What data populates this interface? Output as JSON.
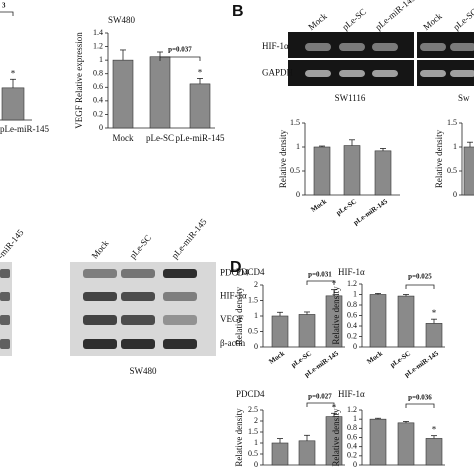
{
  "panels": {
    "b": "B",
    "d": "D"
  },
  "chart_data": [
    {
      "type": "bar",
      "categories": [
        "pLe-miR-145"
      ],
      "values": [
        0.45
      ],
      "errors": [
        0.12
      ],
      "ylim": [
        0,
        1.4
      ],
      "annotation": "3",
      "star": "*"
    },
    {
      "type": "bar",
      "title": "SW480",
      "ylabel": "VEGF Relative expression",
      "categories": [
        "Mock",
        "pLe-SC",
        "pLe-miR-145"
      ],
      "values": [
        1.0,
        1.05,
        0.65
      ],
      "errors": [
        0.15,
        0.07,
        0.08
      ],
      "ylim": [
        0,
        1.4
      ],
      "yticks": [
        0,
        0.2,
        0.4,
        0.6,
        0.8,
        1,
        1.2,
        1.4
      ],
      "annotation": "p=0.037",
      "star": "*"
    },
    {
      "type": "bar",
      "ylabel": "Relative density",
      "categories": [
        "Mock",
        "pLe-SC",
        "pLe-miR-145"
      ],
      "values": [
        1.0,
        1.03,
        0.92
      ],
      "errors": [
        0.02,
        0.12,
        0.05
      ],
      "ylim": [
        0,
        1.5
      ],
      "yticks": [
        0,
        0.5,
        1,
        1.5
      ]
    },
    {
      "type": "bar",
      "ylabel": "Relative density",
      "categories": [
        null
      ],
      "values": [
        1.0
      ],
      "errors": [
        0.1
      ],
      "ylim": [
        0,
        1.5
      ],
      "yticks": [
        0,
        0.5,
        1,
        1.5
      ]
    },
    {
      "type": "bar",
      "title": "PDCD4",
      "ylabel": "Relative density",
      "categories": [
        "Mock",
        "pLe-SC",
        "pLe-miR-145"
      ],
      "values": [
        1.0,
        1.05,
        1.65
      ],
      "errors": [
        0.12,
        0.08,
        0.2
      ],
      "ylim": [
        0,
        2
      ],
      "yticks": [
        0,
        0.5,
        1,
        1.5,
        2
      ],
      "annotation": "p=0.031",
      "star": "*"
    },
    {
      "type": "bar",
      "title": "HIF-1α",
      "ylabel": "Relative density",
      "categories": [
        "Mock",
        "pLe-SC",
        "pLe-miR-145"
      ],
      "values": [
        1.0,
        0.97,
        0.45
      ],
      "errors": [
        0.02,
        0.03,
        0.08
      ],
      "ylim": [
        0,
        1.2
      ],
      "yticks": [
        0,
        0.2,
        0.4,
        0.6,
        0.8,
        1,
        1.2
      ],
      "annotation": "p=0.025",
      "star": "*"
    },
    {
      "type": "bar",
      "title": "PDCD4",
      "ylabel": "Relative density",
      "categories": [
        null,
        null,
        null
      ],
      "values": [
        1.0,
        1.1,
        2.2
      ],
      "errors": [
        0.2,
        0.25,
        0.15
      ],
      "ylim": [
        0,
        2.5
      ],
      "yticks": [
        0,
        0.5,
        1,
        1.5,
        2,
        2.5
      ],
      "annotation": "p=0.027",
      "star": "*"
    },
    {
      "type": "bar",
      "title": "HIF-1α",
      "ylabel": "Relative density",
      "categories": [
        null,
        null,
        null
      ],
      "values": [
        1.0,
        0.92,
        0.58
      ],
      "errors": [
        0.02,
        0.03,
        0.06
      ],
      "ylim": [
        0,
        1.2
      ],
      "yticks": [
        0,
        0.2,
        0.4,
        0.6,
        0.8,
        1,
        1.2
      ],
      "annotation": "p=0.036",
      "star": "*"
    }
  ],
  "blot_b": {
    "rows": [
      "HIF-1α",
      "GAPDH"
    ],
    "lanes": [
      "Mock",
      "pLe-SC",
      "pLe-miR-145"
    ],
    "lanes_right": [
      "Mock",
      "pLe-SC"
    ],
    "cell_line": "SW1116",
    "cell_line_right": "Sw"
  },
  "blot_c": {
    "lanes_left": [
      "-miR-145"
    ],
    "lanes": [
      "Mock",
      "pLe-SC",
      "pLe-miR-145"
    ],
    "rows": [
      "PDCD4",
      "HIF-1α",
      "VEGF",
      "β-actin"
    ],
    "cell_line": "SW480"
  }
}
